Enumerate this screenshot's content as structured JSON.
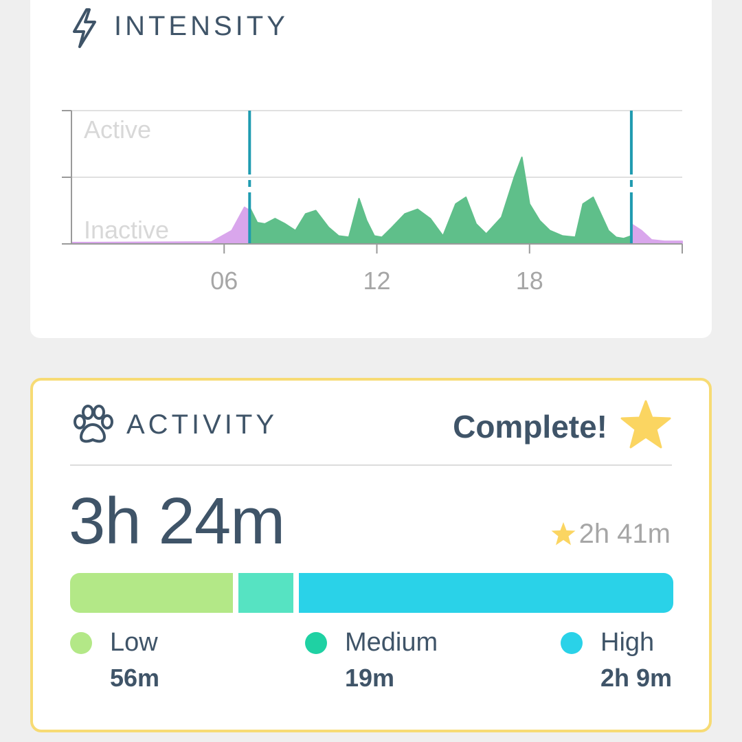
{
  "intensity": {
    "title": "INTENSITY",
    "icon": "lightning-bolt-icon",
    "chart_data": {
      "type": "area",
      "y_levels": [
        "Active",
        "Inactive"
      ],
      "x_ticks": [
        "06",
        "12",
        "18"
      ],
      "x_range_hours": [
        0,
        24
      ],
      "markers_hours": [
        7.0,
        22.0
      ],
      "series": [
        {
          "color": "#d9a6ec",
          "x": [
            0,
            5.5,
            6.3,
            6.8,
            7.0
          ],
          "y": [
            0.02,
            0.03,
            0.2,
            0.55,
            0.5
          ]
        },
        {
          "color": "#5fbf8a",
          "x": [
            7.0,
            7.3,
            7.6,
            8.0,
            8.4,
            8.8,
            9.2,
            9.6,
            10.1,
            10.5,
            10.9,
            11.3,
            11.6,
            11.9,
            12.2,
            12.6,
            13.1,
            13.6,
            14.1,
            14.6,
            15.1,
            15.5,
            15.9,
            16.3,
            16.9,
            17.4,
            17.7,
            18.0,
            18.4,
            18.8,
            19.3,
            19.8,
            20.1,
            20.5,
            20.8,
            21.1,
            21.4,
            21.7,
            22.0
          ],
          "y": [
            0.55,
            0.32,
            0.3,
            0.38,
            0.3,
            0.2,
            0.45,
            0.5,
            0.25,
            0.12,
            0.1,
            0.68,
            0.35,
            0.12,
            0.1,
            0.25,
            0.45,
            0.52,
            0.38,
            0.12,
            0.6,
            0.7,
            0.3,
            0.15,
            0.4,
            1.0,
            1.3,
            0.6,
            0.35,
            0.2,
            0.12,
            0.1,
            0.6,
            0.7,
            0.45,
            0.2,
            0.1,
            0.08,
            0.12
          ]
        },
        {
          "color": "#d9a6ec",
          "x": [
            22.0,
            22.4,
            22.8,
            23.3,
            24.0
          ],
          "y": [
            0.3,
            0.2,
            0.06,
            0.04,
            0.04
          ]
        }
      ]
    }
  },
  "activity": {
    "title": "ACTIVITY",
    "icon": "paw-icon",
    "status": "Complete!",
    "status_icon": "star-icon",
    "total": "3h 24m",
    "goal": "2h 41m",
    "breakdown": [
      {
        "label": "Low",
        "value": "56m",
        "minutes": 56,
        "color": "#b3e887",
        "dot_color": "#b3e887"
      },
      {
        "label": "Medium",
        "value": "19m",
        "minutes": 19,
        "color": "#56e3c2",
        "dot_color": "#1fd1a3"
      },
      {
        "label": "High",
        "value": "2h 9m",
        "minutes": 129,
        "color": "#2ad2e8",
        "dot_color": "#2ad2e8"
      }
    ],
    "accent_color": "#f7db74",
    "star_color": "#fbd561"
  }
}
